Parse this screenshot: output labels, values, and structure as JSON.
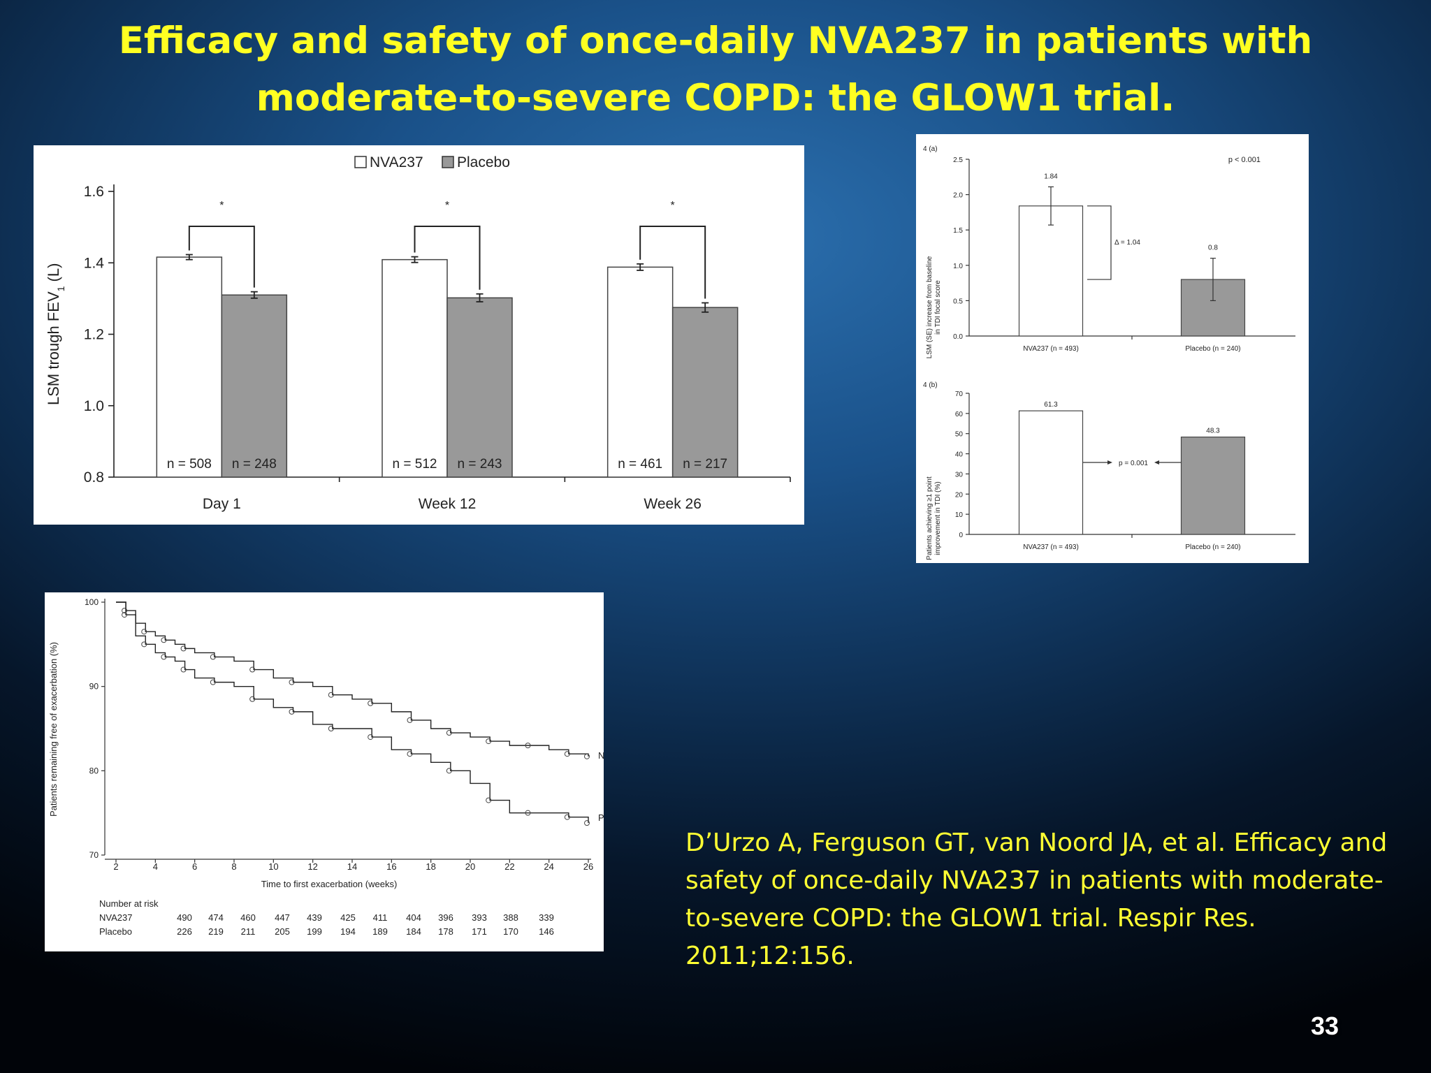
{
  "slide": {
    "title_line1": "Efficacy and safety of once-daily NVA237 in patients with",
    "title_line2": "moderate-to-severe COPD: the GLOW1 trial.",
    "citation": "D’Urzo A, Ferguson GT, van Noord JA, et al. Efficacy and safety of once-daily NVA237 in patients with moderate-to-severe COPD: the GLOW1 trial. Respir Res. 2011;12:156.",
    "slide_number": "33",
    "colors": {
      "title": "#ffff22",
      "citation": "#ffff33",
      "nva237_bar": "#ffffff",
      "placebo_bar": "#999999"
    }
  },
  "chart_data": [
    {
      "type": "bar",
      "title": "",
      "ylabel": "LSM trough FEV",
      "ylabel_subscript": "1",
      "ylabel_suffix": " (L)",
      "ylim": [
        0.8,
        1.6
      ],
      "yticks": [
        "0.8",
        "1.0",
        "1.2",
        "1.4",
        "1.6"
      ],
      "categories": [
        "Day 1",
        "Week 12",
        "Week 26"
      ],
      "legend": [
        "NVA237",
        "Placebo"
      ],
      "legend_placement": "top-center",
      "significance_mark": "*",
      "series": [
        {
          "name": "NVA237",
          "values": [
            1.416,
            1.409,
            1.388
          ],
          "errors": [
            0.007,
            0.008,
            0.009
          ],
          "n_labels": [
            "n = 508",
            "n = 512",
            "n = 461"
          ]
        },
        {
          "name": "Placebo",
          "values": [
            1.31,
            1.302,
            1.275
          ],
          "errors": [
            0.009,
            0.011,
            0.013
          ],
          "n_labels": [
            "n = 248",
            "n = 243",
            "n = 217"
          ]
        }
      ]
    },
    {
      "type": "bar",
      "panel_label": "4 (a)",
      "ylabel": "LSM (SE) increase from baseline in TDI focal score",
      "ylabel_line1": "LSM (SE) increase from baseline",
      "ylabel_line2": "in TDI focal score",
      "ylim": [
        0,
        2.5
      ],
      "yticks": [
        "0.0",
        "0.5",
        "1.0",
        "1.5",
        "2.0",
        "2.5"
      ],
      "categories": [
        "NVA237 (n = 493)",
        "Placebo (n = 240)"
      ],
      "values": [
        1.84,
        0.8
      ],
      "errors": [
        0.27,
        0.3
      ],
      "data_labels": [
        "1.84",
        "0.8"
      ],
      "annotations": {
        "p_value": "p < 0.001",
        "delta": "Δ = 1.04"
      }
    },
    {
      "type": "bar",
      "panel_label": "4 (b)",
      "ylabel": "Patients achieving ≥1 point improvement in TDI (%)",
      "ylabel_line1": "Patients achieving ≥1 point",
      "ylabel_line2": "improvement in TDI (%)",
      "ylim": [
        0,
        70
      ],
      "yticks": [
        "0",
        "10",
        "20",
        "30",
        "40",
        "50",
        "60",
        "70"
      ],
      "categories": [
        "NVA237 (n = 493)",
        "Placebo (n = 240)"
      ],
      "values": [
        61.3,
        48.3
      ],
      "data_labels": [
        "61.3",
        "48.3"
      ],
      "annotations": {
        "p_value": "p = 0.001"
      }
    },
    {
      "type": "line",
      "xlabel": "Time to first exacerbation (weeks)",
      "ylabel": "Patients remaining free of exacerbation (%)",
      "xlim": [
        2,
        26
      ],
      "ylim": [
        70,
        100
      ],
      "xticks": [
        "2",
        "4",
        "6",
        "8",
        "10",
        "12",
        "14",
        "16",
        "18",
        "20",
        "22",
        "24",
        "26"
      ],
      "yticks": [
        "70",
        "80",
        "90",
        "100"
      ],
      "series": [
        {
          "name": "NVA237",
          "x": [
            2,
            2.5,
            3,
            3.5,
            4,
            4.5,
            5,
            5.5,
            6,
            7,
            8,
            9,
            10,
            11,
            12,
            13,
            14,
            15,
            16,
            17,
            18,
            19,
            20,
            21,
            22,
            23,
            24,
            25,
            26
          ],
          "y": [
            100,
            99,
            97.5,
            96.5,
            96,
            95.5,
            95,
            94.5,
            94,
            93.5,
            93,
            92,
            91,
            90.5,
            90,
            89,
            88.5,
            88,
            87,
            86,
            85,
            84.5,
            84,
            83.5,
            83,
            83,
            82.5,
            82,
            81.7
          ]
        },
        {
          "name": "Placebo",
          "x": [
            2,
            2.5,
            3,
            3.5,
            4,
            4.5,
            5,
            5.5,
            6,
            7,
            8,
            9,
            10,
            11,
            12,
            13,
            14,
            15,
            16,
            17,
            18,
            19,
            20,
            21,
            22,
            23,
            24,
            25,
            26
          ],
          "y": [
            100,
            98.5,
            96,
            95,
            94,
            93.5,
            93,
            92,
            91,
            90.5,
            90,
            88.5,
            87.5,
            87,
            85.5,
            85,
            85,
            84,
            82.5,
            82,
            81,
            80,
            78.5,
            76.5,
            75,
            75,
            75,
            74.5,
            73.8
          ]
        }
      ],
      "number_at_risk": {
        "label": "Number at risk",
        "rows": [
          {
            "name": "NVA237",
            "values": [
              "490",
              "474",
              "460",
              "447",
              "439",
              "425",
              "411",
              "404",
              "396",
              "393",
              "388",
              "339"
            ]
          },
          {
            "name": "Placebo",
            "values": [
              "226",
              "219",
              "211",
              "205",
              "199",
              "194",
              "189",
              "184",
              "178",
              "171",
              "170",
              "146"
            ]
          }
        ]
      }
    }
  ]
}
